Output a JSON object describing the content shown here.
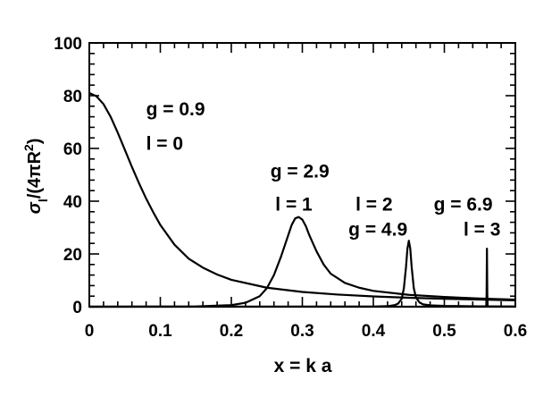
{
  "chart_data": {
    "type": "line",
    "title": "",
    "xlabel": "x = k a",
    "ylabel": "σ_l/(4πR²)",
    "xlim": [
      0,
      0.6
    ],
    "ylim": [
      0,
      100
    ],
    "x_ticks": [
      "0",
      "0.1",
      "0.2",
      "0.3",
      "0.4",
      "0.5",
      "0.6"
    ],
    "y_ticks": [
      "0",
      "20",
      "40",
      "60",
      "80",
      "100"
    ],
    "grid": false,
    "legend": "none",
    "series": [
      {
        "x": [
          0,
          0.01,
          0.02,
          0.03,
          0.04,
          0.05,
          0.06,
          0.07,
          0.08,
          0.09,
          0.1,
          0.12,
          0.14,
          0.16,
          0.18,
          0.2,
          0.25,
          0.3,
          0.35,
          0.4,
          0.45,
          0.5,
          0.55,
          0.6
        ],
        "y": [
          81,
          79.8,
          76.8,
          72,
          66,
          59.5,
          53,
          46.8,
          41,
          35.8,
          31,
          23.5,
          18.2,
          14.8,
          12.2,
          10.2,
          7.2,
          5.6,
          4.6,
          3.9,
          3.4,
          3.0,
          2.7,
          2.4
        ]
      },
      {
        "x": [
          0,
          0.15,
          0.2,
          0.22,
          0.24,
          0.25,
          0.26,
          0.27,
          0.28,
          0.285,
          0.29,
          0.295,
          0.3,
          0.305,
          0.31,
          0.32,
          0.33,
          0.34,
          0.36,
          0.38,
          0.4,
          0.45,
          0.5,
          0.55,
          0.6
        ],
        "y": [
          0,
          0.1,
          0.6,
          1.5,
          4,
          7,
          12,
          19,
          27,
          31,
          33.5,
          34,
          33,
          30.5,
          27,
          21,
          16,
          12.5,
          9,
          7.2,
          6,
          4.5,
          3.7,
          3.1,
          2.7
        ]
      },
      {
        "x": [
          0,
          0.4,
          0.42,
          0.43,
          0.435,
          0.44,
          0.443,
          0.446,
          0.448,
          0.45,
          0.452,
          0.454,
          0.457,
          0.46,
          0.465,
          0.47,
          0.48,
          0.5,
          0.55,
          0.6
        ],
        "y": [
          0,
          0.05,
          0.2,
          0.6,
          1.2,
          3,
          7,
          15,
          22,
          25,
          22,
          15,
          7,
          3.5,
          1.6,
          0.9,
          0.5,
          0.3,
          0.15,
          0.1
        ]
      },
      {
        "x": [
          0,
          0.559,
          0.5595,
          0.56,
          0.5605,
          0.561,
          0.6
        ],
        "y": [
          0,
          0,
          5,
          22,
          5,
          0,
          0
        ]
      }
    ],
    "annotations": [
      {
        "text": "g = 0.9",
        "x": 0.08,
        "y": 72.5
      },
      {
        "text": "l = 0",
        "x": 0.08,
        "y": 59.5
      },
      {
        "text": "g = 2.9",
        "x": 0.255,
        "y": 49
      },
      {
        "text": "l = 1",
        "x": 0.262,
        "y": 36.5
      },
      {
        "text": "l = 2",
        "x": 0.375,
        "y": 36.5
      },
      {
        "text": "g = 4.9",
        "x": 0.365,
        "y": 27
      },
      {
        "text": "g = 6.9",
        "x": 0.485,
        "y": 36.5
      },
      {
        "text": "l = 3",
        "x": 0.527,
        "y": 27
      }
    ]
  }
}
